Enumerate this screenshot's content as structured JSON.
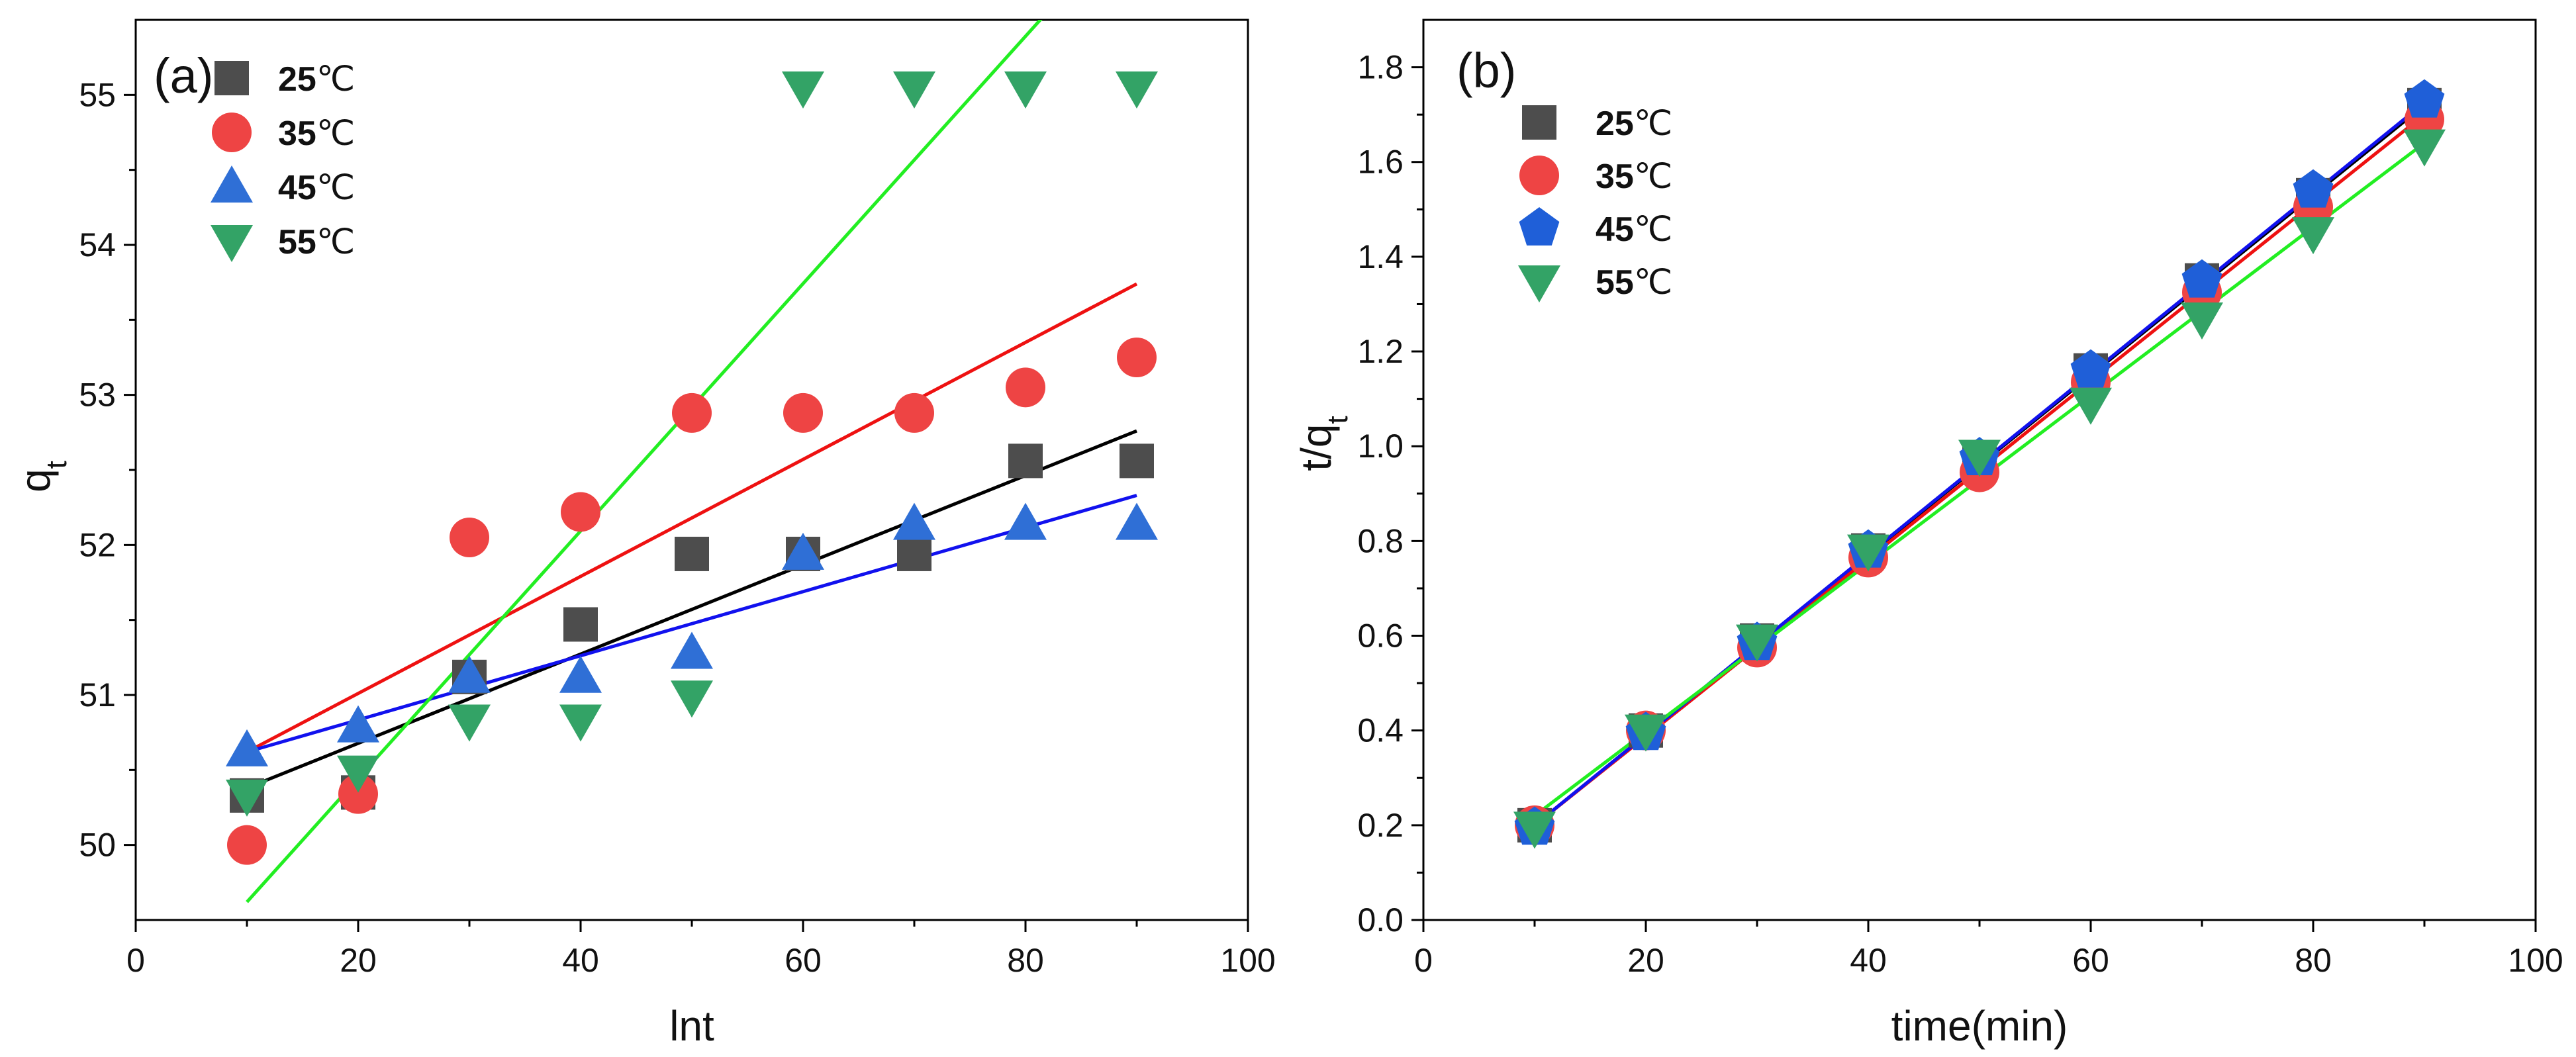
{
  "chart_data": [
    {
      "type": "scatter",
      "panel_label": "(a)",
      "xlabel": "lnt",
      "ylabel": "q",
      "ylabel_sub": "t",
      "xlim": [
        0,
        100
      ],
      "ylim": [
        49.5,
        55.5
      ],
      "xticks": [
        0,
        20,
        40,
        60,
        80,
        100
      ],
      "yticks": [
        50,
        51,
        52,
        53,
        54,
        55
      ],
      "grid": false,
      "legend_position": "top-left",
      "x": [
        10,
        20,
        30,
        40,
        50,
        60,
        70,
        80,
        90
      ],
      "series": [
        {
          "name": "25",
          "unit": "℃",
          "marker": "square",
          "color": "#4d4d4d",
          "values": [
            50.33,
            50.35,
            51.12,
            51.47,
            51.94,
            51.94,
            51.94,
            52.56,
            52.56
          ],
          "fit": {
            "color": "#000000",
            "x": [
              10,
              90
            ],
            "y": [
              50.38,
              52.76
            ]
          }
        },
        {
          "name": "35",
          "unit": "℃",
          "marker": "circle",
          "color": "#ee4444",
          "values": [
            50.0,
            50.34,
            52.05,
            52.22,
            52.88,
            52.88,
            52.88,
            53.05,
            53.25
          ],
          "fit": {
            "color": "#ee1111",
            "x": [
              10,
              90
            ],
            "y": [
              50.62,
              53.74
            ]
          }
        },
        {
          "name": "45",
          "unit": "℃",
          "marker": "triangle-up",
          "color": "#2f6fd6",
          "values": [
            50.63,
            50.79,
            51.12,
            51.12,
            51.28,
            51.94,
            52.14,
            52.14,
            52.14
          ],
          "fit": {
            "color": "#1111ee",
            "x": [
              10,
              90
            ],
            "y": [
              50.62,
              52.33
            ]
          }
        },
        {
          "name": "55",
          "unit": "℃",
          "marker": "triangle-down",
          "color": "#33a366",
          "values": [
            50.33,
            50.49,
            50.83,
            50.83,
            50.99,
            55.05,
            55.05,
            55.05,
            55.05
          ],
          "fit": {
            "color": "#22ee22",
            "x": [
              10,
              88
            ],
            "y": [
              49.62,
              56.05
            ]
          }
        }
      ]
    },
    {
      "type": "scatter",
      "panel_label": "(b)",
      "xlabel": "time(min)",
      "ylabel": "t/q",
      "ylabel_sub": "t",
      "xlim": [
        0,
        100
      ],
      "ylim": [
        0.0,
        1.9
      ],
      "xticks": [
        0,
        20,
        40,
        60,
        80,
        100
      ],
      "yticks": [
        0.0,
        0.2,
        0.4,
        0.6,
        0.8,
        1.0,
        1.2,
        1.4,
        1.6,
        1.8
      ],
      "ytick_labels": [
        "0.0",
        "0.2",
        "0.4",
        "0.6",
        "0.8",
        "1.0",
        "1.2",
        "1.4",
        "1.6",
        "1.8"
      ],
      "grid": false,
      "legend_position": "top-left",
      "x": [
        10,
        20,
        30,
        40,
        50,
        60,
        70,
        80,
        90
      ],
      "series": [
        {
          "name": "25",
          "unit": "℃",
          "marker": "square",
          "color": "#4d4d4d",
          "values": [
            0.2,
            0.4,
            0.59,
            0.78,
            0.97,
            1.16,
            1.35,
            1.53,
            1.72
          ],
          "fit": {
            "color": "#000000",
            "x": [
              10,
              90
            ],
            "y": [
              0.2,
              1.72
            ]
          }
        },
        {
          "name": "35",
          "unit": "℃",
          "marker": "circle",
          "color": "#ee4444",
          "values": [
            0.2,
            0.4,
            0.575,
            0.765,
            0.945,
            1.135,
            1.325,
            1.505,
            1.69
          ],
          "fit": {
            "color": "#ee1111",
            "x": [
              10,
              90
            ],
            "y": [
              0.2,
              1.7
            ]
          }
        },
        {
          "name": "45",
          "unit": "℃",
          "marker": "pentagon",
          "color": "#1f5fd8",
          "values": [
            0.195,
            0.395,
            0.585,
            0.78,
            0.975,
            1.16,
            1.35,
            1.54,
            1.73
          ],
          "fit": {
            "color": "#1111ee",
            "x": [
              10,
              90
            ],
            "y": [
              0.2,
              1.725
            ]
          }
        },
        {
          "name": "55",
          "unit": "℃",
          "marker": "triangle-down",
          "color": "#33a366",
          "values": [
            0.195,
            0.4,
            0.59,
            0.78,
            0.98,
            1.09,
            1.27,
            1.45,
            1.635
          ],
          "fit": {
            "color": "#22ee22",
            "x": [
              10,
              90
            ],
            "y": [
              0.22,
              1.64
            ]
          }
        }
      ]
    }
  ]
}
